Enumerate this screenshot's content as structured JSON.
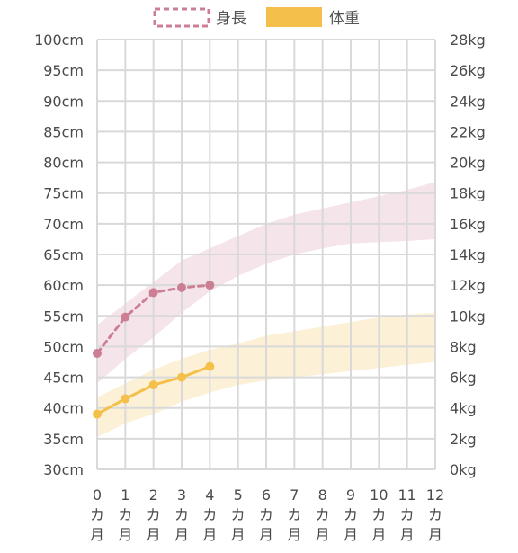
{
  "chart_data": {
    "type": "line",
    "x": [
      0,
      1,
      2,
      3,
      4,
      5,
      6,
      7,
      8,
      9,
      10,
      11,
      12
    ],
    "x_tick_labels": [
      {
        "num": "0",
        "unit": [
          "カ",
          "月"
        ]
      },
      {
        "num": "1",
        "unit": [
          "カ",
          "月"
        ]
      },
      {
        "num": "2",
        "unit": [
          "カ",
          "月"
        ]
      },
      {
        "num": "3",
        "unit": [
          "カ",
          "月"
        ]
      },
      {
        "num": "4",
        "unit": [
          "カ",
          "月"
        ]
      },
      {
        "num": "5",
        "unit": [
          "カ",
          "月"
        ]
      },
      {
        "num": "6",
        "unit": [
          "カ",
          "月"
        ]
      },
      {
        "num": "7",
        "unit": [
          "カ",
          "月"
        ]
      },
      {
        "num": "8",
        "unit": [
          "カ",
          "月"
        ]
      },
      {
        "num": "9",
        "unit": [
          "カ",
          "月"
        ]
      },
      {
        "num": "10",
        "unit": [
          "カ",
          "月"
        ]
      },
      {
        "num": "11",
        "unit": [
          "カ",
          "月"
        ]
      },
      {
        "num": "12",
        "unit": [
          "カ",
          "月"
        ]
      }
    ],
    "xlim": [
      0,
      12
    ],
    "y_left": {
      "ylim": [
        30,
        100
      ],
      "tick_labels": [
        "100cm",
        "95cm",
        "90cm",
        "85cm",
        "80cm",
        "75cm",
        "70cm",
        "65cm",
        "60cm",
        "55cm",
        "50cm",
        "45cm",
        "40cm",
        "35cm",
        "30cm"
      ]
    },
    "y_right": {
      "ylim": [
        0,
        28
      ],
      "tick_labels": [
        "28kg",
        "26kg",
        "24kg",
        "22kg",
        "20kg",
        "18kg",
        "16kg",
        "14kg",
        "12kg",
        "10kg",
        "8kg",
        "6kg",
        "4kg",
        "2kg",
        "0kg"
      ]
    },
    "grid": true,
    "legend_position": "top-center",
    "series": [
      {
        "name": "身長",
        "axis": "left",
        "color": "#cc7f94",
        "line_style": "dashed",
        "x": [
          0,
          1,
          2,
          3,
          4
        ],
        "values": [
          48.9,
          54.8,
          58.8,
          59.6,
          60.0
        ]
      },
      {
        "name": "体重",
        "axis": "right",
        "color": "#f4c04a",
        "line_style": "solid",
        "x": [
          0,
          1,
          2,
          3,
          4
        ],
        "values": [
          3.6,
          4.6,
          5.5,
          6.0,
          6.7
        ]
      }
    ],
    "bands": [
      {
        "axis": "left",
        "color": "#f3dfe5",
        "x": [
          0,
          1,
          2,
          3,
          4,
          5,
          6,
          7,
          8,
          9,
          10,
          11,
          12
        ],
        "lower": [
          44.0,
          48.0,
          51.5,
          55.5,
          59.0,
          61.5,
          63.5,
          65.0,
          66.0,
          66.8,
          67.0,
          67.2,
          67.5
        ],
        "upper": [
          53.5,
          57.0,
          60.5,
          64.0,
          66.0,
          68.0,
          70.0,
          71.5,
          72.5,
          73.5,
          74.5,
          75.5,
          76.8
        ]
      },
      {
        "axis": "right",
        "color": "#fcefd0",
        "x": [
          0,
          1,
          2,
          3,
          4,
          5,
          6,
          7,
          8,
          9,
          10,
          11,
          12
        ],
        "lower": [
          2.1,
          3.0,
          3.6,
          4.4,
          5.0,
          5.5,
          5.8,
          6.0,
          6.2,
          6.4,
          6.6,
          6.8,
          7.0
        ],
        "upper": [
          4.7,
          5.6,
          6.5,
          7.2,
          7.8,
          8.2,
          8.7,
          9.0,
          9.3,
          9.6,
          9.9,
          10.1,
          10.2
        ]
      }
    ]
  }
}
